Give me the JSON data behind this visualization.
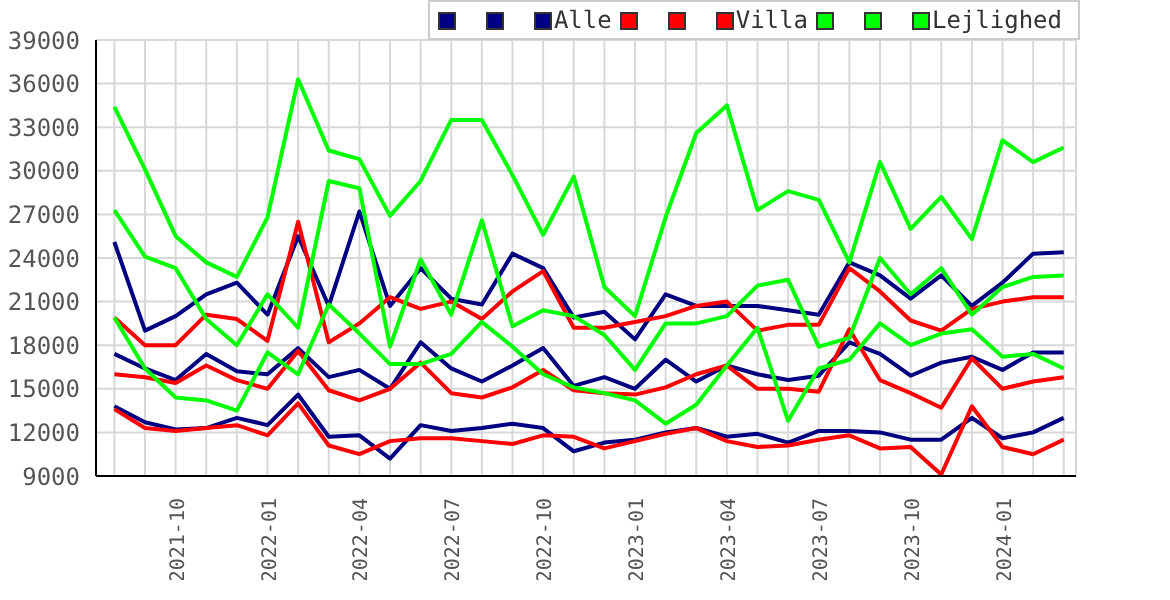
{
  "chart_data": {
    "type": "line",
    "legend": "top right",
    "grid": true,
    "marker": "none",
    "line_style": "solid",
    "x": [
      "2021-08",
      "2021-09",
      "2021-10",
      "2021-11",
      "2021-12",
      "2022-01",
      "2022-02",
      "2022-03",
      "2022-04",
      "2022-05",
      "2022-06",
      "2022-07",
      "2022-08",
      "2022-09",
      "2022-10",
      "2022-11",
      "2022-12",
      "2023-01",
      "2023-02",
      "2023-03",
      "2023-04",
      "2023-05",
      "2023-06",
      "2023-07",
      "2023-08",
      "2023-09",
      "2023-10",
      "2023-11",
      "2023-12",
      "2024-01",
      "2024-02",
      "2024-03"
    ],
    "xlim": [
      "2021-07-13",
      "2024-03-13"
    ],
    "xticks": [
      {
        "value": "2021-08",
        "label": null
      },
      {
        "value": "2021-09",
        "label": null
      },
      "2021-10",
      {
        "value": "2021-11",
        "label": null
      },
      {
        "value": "2021-12",
        "label": null
      },
      "2022-01",
      {
        "value": "2022-02",
        "label": null
      },
      {
        "value": "2022-03",
        "label": null
      },
      "2022-04",
      {
        "value": "2022-05",
        "label": null
      },
      {
        "value": "2022-06",
        "label": null
      },
      "2022-07",
      {
        "value": "2022-08",
        "label": null
      },
      {
        "value": "2022-09",
        "label": null
      },
      "2022-10",
      {
        "value": "2022-11",
        "label": null
      },
      {
        "value": "2022-12",
        "label": null
      },
      "2023-01",
      {
        "value": "2023-02",
        "label": null
      },
      {
        "value": "2023-03",
        "label": null
      },
      "2023-04",
      {
        "value": "2023-05",
        "label": null
      },
      {
        "value": "2023-06",
        "label": null
      },
      "2023-07",
      {
        "value": "2023-08",
        "label": null
      },
      {
        "value": "2023-09",
        "label": null
      },
      "2023-10",
      {
        "value": "2023-11",
        "label": null
      },
      {
        "value": "2023-12",
        "label": null
      },
      "2024-01",
      {
        "value": "2024-02",
        "label": null
      },
      {
        "value": "2024-03",
        "label": null
      }
    ],
    "ylim": [
      9000,
      39000
    ],
    "yticks": [
      9000,
      12000,
      15000,
      18000,
      21000,
      24000,
      27000,
      30000,
      33000,
      36000,
      39000
    ],
    "series": [
      {
        "color": "#000080",
        "values": [
          13800,
          12700,
          12200,
          12300,
          13000,
          12500,
          14600,
          11700,
          11800,
          10200,
          12500,
          12100,
          12300,
          12600,
          12300,
          10700,
          11300,
          11500,
          12000,
          12300,
          11700,
          11900,
          11300,
          12100,
          12100,
          12000,
          11500,
          11500,
          13000,
          11600,
          12000,
          13000
        ]
      },
      {
        "color": "#000080",
        "values": [
          17400,
          16400,
          15600,
          17400,
          16200,
          16000,
          17800,
          15800,
          16300,
          15000,
          18200,
          16400,
          15500,
          16600,
          17800,
          15200,
          15800,
          15000,
          17000,
          15500,
          16600,
          16000,
          15600,
          15900,
          18200,
          17400,
          15900,
          16800,
          17200,
          16300,
          17500,
          17500
        ]
      },
      {
        "name": "Alle",
        "color": "#000080",
        "values": [
          25100,
          19000,
          20000,
          21500,
          22300,
          20100,
          25500,
          20700,
          27200,
          20700,
          23300,
          21200,
          20800,
          24300,
          23300,
          19900,
          20300,
          18400,
          21500,
          20700,
          20700,
          20700,
          20400,
          20100,
          23700,
          22800,
          21200,
          22800,
          20700,
          22300,
          24300,
          24400
        ]
      },
      {
        "color": "#ff0000",
        "values": [
          13600,
          12300,
          12100,
          12300,
          12500,
          11800,
          14000,
          11100,
          10500,
          11400,
          11600,
          11600,
          11400,
          11200,
          11800,
          11700,
          10900,
          11400,
          11900,
          12300,
          11400,
          11000,
          11100,
          11500,
          11800,
          10900,
          11000,
          9100,
          13800,
          11000,
          10500,
          11500
        ]
      },
      {
        "color": "#ff0000",
        "values": [
          16000,
          15800,
          15400,
          16600,
          15600,
          15000,
          17600,
          14900,
          14200,
          15000,
          16800,
          14700,
          14400,
          15100,
          16300,
          14900,
          14700,
          14600,
          15100,
          16000,
          16600,
          15000,
          15000,
          14800,
          19100,
          15600,
          14700,
          13700,
          17100,
          15000,
          15500,
          15800
        ]
      },
      {
        "name": "Villa",
        "color": "#ff0000",
        "values": [
          19900,
          18000,
          18000,
          20100,
          19800,
          18300,
          26500,
          18200,
          19500,
          21300,
          20500,
          21000,
          19800,
          21700,
          23100,
          19200,
          19200,
          19600,
          20000,
          20700,
          21000,
          19000,
          19400,
          19400,
          23300,
          21700,
          19700,
          19000,
          20500,
          21000,
          21300,
          21300
        ]
      },
      {
        "color": "#00ff00",
        "values": [
          19900,
          16400,
          14400,
          14200,
          13500,
          17500,
          16000,
          20800,
          18800,
          16700,
          16700,
          17400,
          19600,
          17900,
          16000,
          15100,
          14700,
          14200,
          12600,
          13900,
          16600,
          19200,
          12800,
          16400,
          17000,
          19500,
          18000,
          18800,
          19100,
          17200,
          17400,
          16400
        ]
      },
      {
        "color": "#00ff00",
        "values": [
          27300,
          24100,
          23300,
          19800,
          18000,
          21500,
          19200,
          29300,
          28800,
          17900,
          23900,
          20100,
          26600,
          19300,
          20400,
          20000,
          18700,
          16300,
          19500,
          19500,
          20000,
          22100,
          22500,
          17900,
          18500,
          24000,
          21500,
          23300,
          20100,
          22000,
          22700,
          22800
        ]
      },
      {
        "name": "Lejlighed",
        "color": "#00ff00",
        "values": [
          34400,
          30100,
          25500,
          23700,
          22700,
          26800,
          36300,
          31400,
          30800,
          26900,
          29300,
          33500,
          33500,
          29700,
          25600,
          29600,
          22000,
          20000,
          26800,
          32600,
          34500,
          27300,
          28600,
          28000,
          23700,
          30600,
          26000,
          28200,
          25300,
          32100,
          30600,
          31600
        ]
      }
    ]
  }
}
